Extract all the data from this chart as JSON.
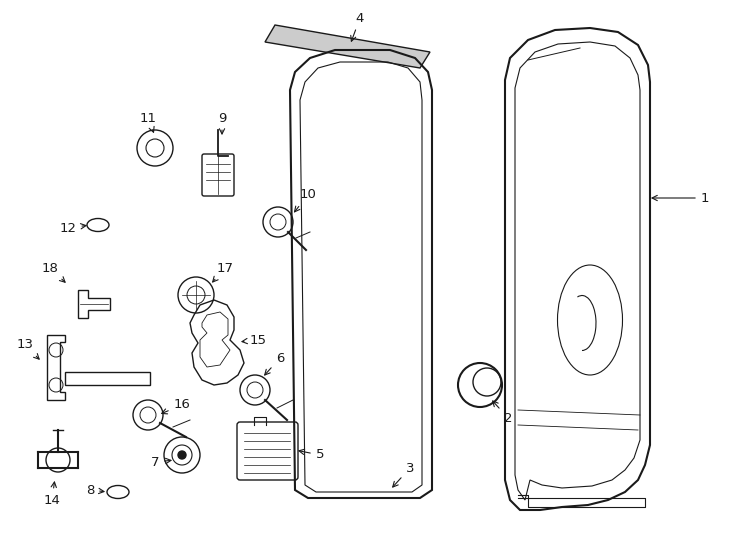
{
  "bg_color": "#ffffff",
  "line_color": "#1a1a1a",
  "figsize": [
    7.34,
    5.4
  ],
  "dpi": 100,
  "lw": 1.0
}
